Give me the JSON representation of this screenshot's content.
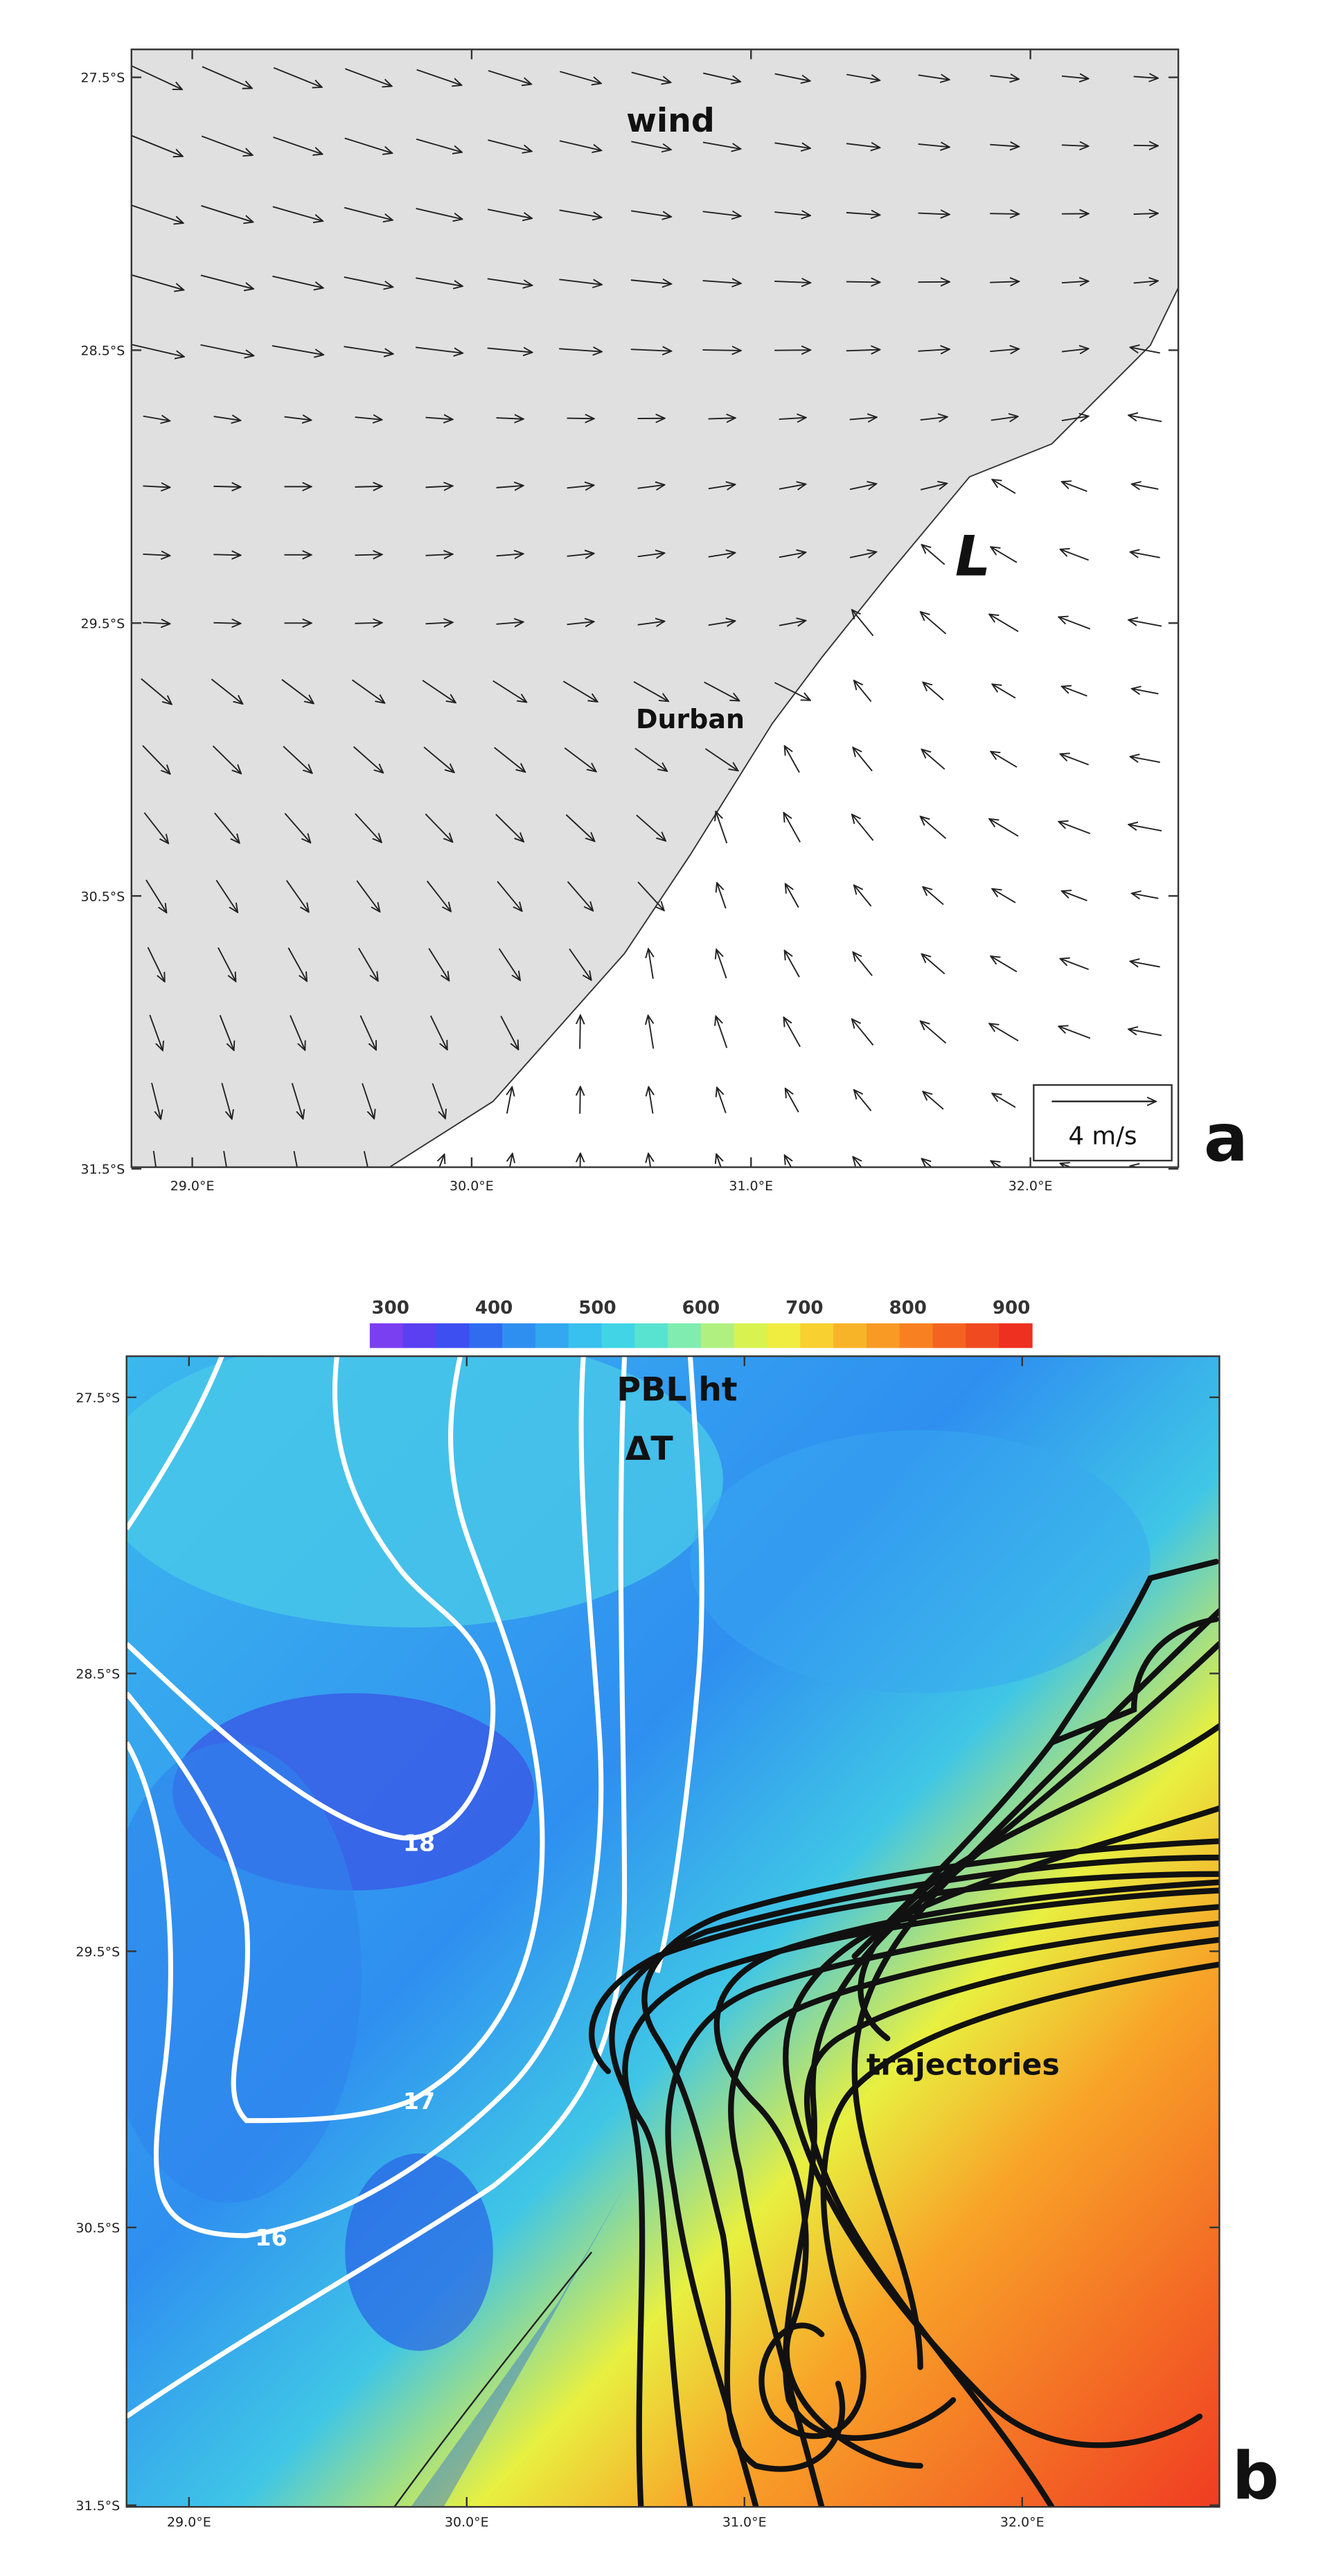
{
  "panel_a": {
    "title": "wind",
    "low_label": "L",
    "city": "Durban",
    "scale_label": "4 m/s",
    "letter": "a",
    "y_ticks": [
      "27.5°S",
      "28.5°S",
      "29.5°S",
      "30.5°S",
      "31.5°S"
    ],
    "x_ticks": [
      "29.0°E",
      "30.0°E",
      "31.0°E",
      "32.0°E"
    ]
  },
  "panel_b": {
    "colorbar_ticks": [
      300,
      400,
      500,
      600,
      700,
      800,
      900
    ],
    "title_lines": [
      "PBL ht",
      "ΔT"
    ],
    "contour_labels": [
      "18",
      "17",
      "16"
    ],
    "trajectory_label": "trajectories",
    "letter": "b",
    "y_ticks": [
      "27.5°S",
      "28.5°S",
      "29.5°S",
      "30.5°S",
      "31.5°S"
    ],
    "x_ticks": [
      "29.0°E",
      "30.0°E",
      "31.0°E",
      "32.0°E"
    ]
  }
}
